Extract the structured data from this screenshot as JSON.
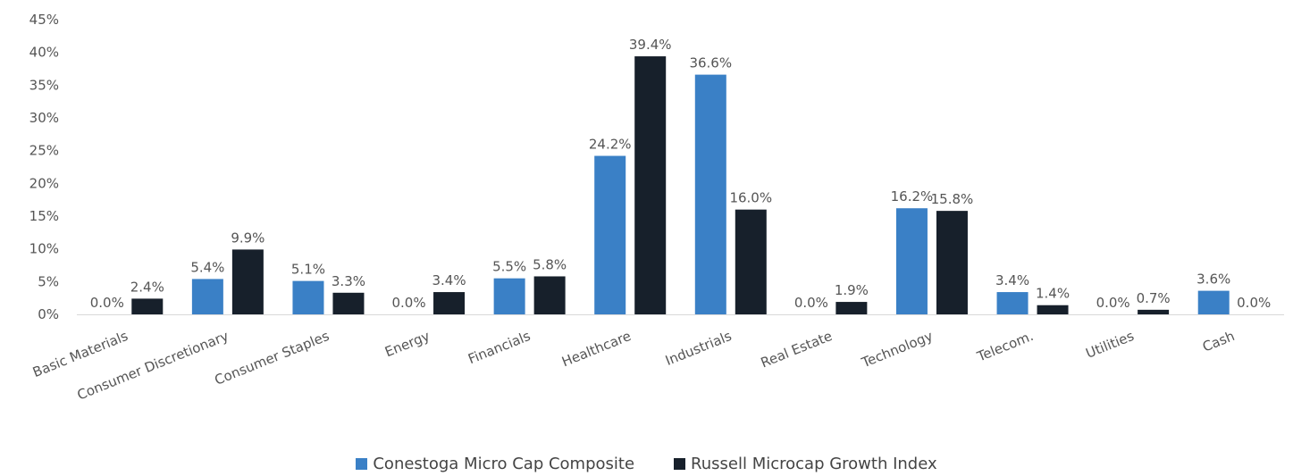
{
  "chart_data": {
    "type": "bar",
    "categories": [
      "Basic Materials",
      "Consumer Discretionary",
      "Consumer Staples",
      "Energy",
      "Financials",
      "Healthcare",
      "Industrials",
      "Real Estate",
      "Technology",
      "Telecom.",
      "Utilities",
      "Cash"
    ],
    "series": [
      {
        "name": "Conestoga Micro Cap Composite",
        "color": "#3a80c6",
        "values": [
          0.0,
          5.4,
          5.1,
          0.0,
          5.5,
          24.2,
          36.6,
          0.0,
          16.2,
          3.4,
          0.0,
          3.6
        ],
        "labels": [
          "0.0%",
          "5.4%",
          "5.1%",
          "0.0%",
          "5.5%",
          "24.2%",
          "36.6%",
          "0.0%",
          "16.2%",
          "3.4%",
          "0.0%",
          "3.6%"
        ]
      },
      {
        "name": "Russell Microcap Growth Index",
        "color": "#17202b",
        "values": [
          2.4,
          9.9,
          3.3,
          3.4,
          5.8,
          39.4,
          16.0,
          1.9,
          15.8,
          1.4,
          0.7,
          0.0
        ],
        "labels": [
          "2.4%",
          "9.9%",
          "3.3%",
          "3.4%",
          "5.8%",
          "39.4%",
          "16.0%",
          "1.9%",
          "15.8%",
          "1.4%",
          "0.7%",
          "0.0%"
        ]
      }
    ],
    "y_ticks": [
      "0%",
      "5%",
      "10%",
      "15%",
      "20%",
      "25%",
      "30%",
      "35%",
      "40%",
      "45%"
    ],
    "ylim": [
      0,
      45
    ],
    "grid": false,
    "legend_position": "bottom-center"
  }
}
